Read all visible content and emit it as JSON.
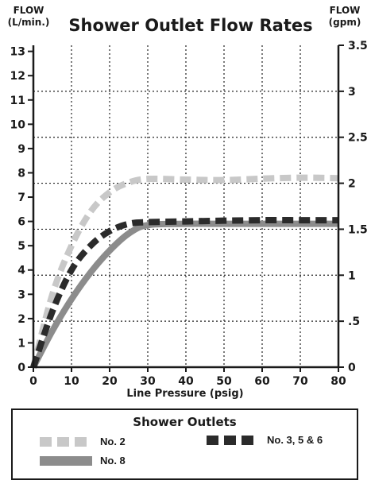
{
  "header": {
    "left_axis_title": [
      "FLOW",
      "(L/min.)"
    ],
    "right_axis_title": [
      "FLOW",
      "(gpm)"
    ]
  },
  "chart_data": {
    "type": "line",
    "title": "Shower Outlet Flow Rates",
    "xlabel": "Line Pressure (psig)",
    "ylabel": "FLOW (L/min.)",
    "y2label": "FLOW (gpm)",
    "xlim": [
      0,
      80
    ],
    "ylim": [
      0,
      13.25
    ],
    "y2lim": [
      0,
      3.5
    ],
    "grid": true,
    "x_ticks": [
      0,
      10,
      20,
      30,
      40,
      50,
      60,
      70,
      80
    ],
    "y_ticks": [
      0,
      1,
      2,
      3,
      4,
      5,
      6,
      7,
      8,
      9,
      10,
      11,
      12,
      13
    ],
    "y2_ticks": [
      {
        "value": 0,
        "label": "0"
      },
      {
        "value": 0.5,
        "label": ".5"
      },
      {
        "value": 1,
        "label": "1"
      },
      {
        "value": 1.5,
        "label": "1.5"
      },
      {
        "value": 2,
        "label": "2"
      },
      {
        "value": 2.5,
        "label": "2.5"
      },
      {
        "value": 3,
        "label": "3"
      },
      {
        "value": 3.5,
        "label": "3.5"
      }
    ],
    "series": [
      {
        "name": "No. 2",
        "color": "#c8c8c8",
        "style": "dashed",
        "x": [
          0,
          5,
          10,
          15,
          20,
          25,
          30,
          40,
          50,
          60,
          70,
          80
        ],
        "y": [
          0,
          3.0,
          5.0,
          6.4,
          7.2,
          7.6,
          7.75,
          7.72,
          7.7,
          7.76,
          7.8,
          7.78
        ]
      },
      {
        "name": "No. 3, 5 & 6",
        "color": "#2b2b2b",
        "style": "dashed",
        "x": [
          0,
          5,
          10,
          15,
          20,
          25,
          30,
          40,
          50,
          60,
          70,
          80
        ],
        "y": [
          0,
          2.3,
          4.0,
          5.0,
          5.6,
          5.9,
          5.97,
          6.0,
          6.03,
          6.05,
          6.05,
          6.05
        ]
      },
      {
        "name": "No. 8",
        "color": "#8c8c8c",
        "style": "solid",
        "x": [
          0,
          5,
          10,
          15,
          20,
          25,
          30,
          40,
          50,
          60,
          70,
          80
        ],
        "y": [
          0,
          1.5,
          2.8,
          3.9,
          4.8,
          5.5,
          5.85,
          5.9,
          5.9,
          5.9,
          5.9,
          5.9
        ]
      }
    ]
  },
  "legend": {
    "title": "Shower Outlets",
    "items": [
      {
        "label": "No. 2",
        "color": "#c8c8c8",
        "style": "dashed"
      },
      {
        "label": "No. 3, 5 & 6",
        "color": "#2b2b2b",
        "style": "dashed"
      },
      {
        "label": "No. 8",
        "color": "#8c8c8c",
        "style": "solid"
      }
    ]
  }
}
